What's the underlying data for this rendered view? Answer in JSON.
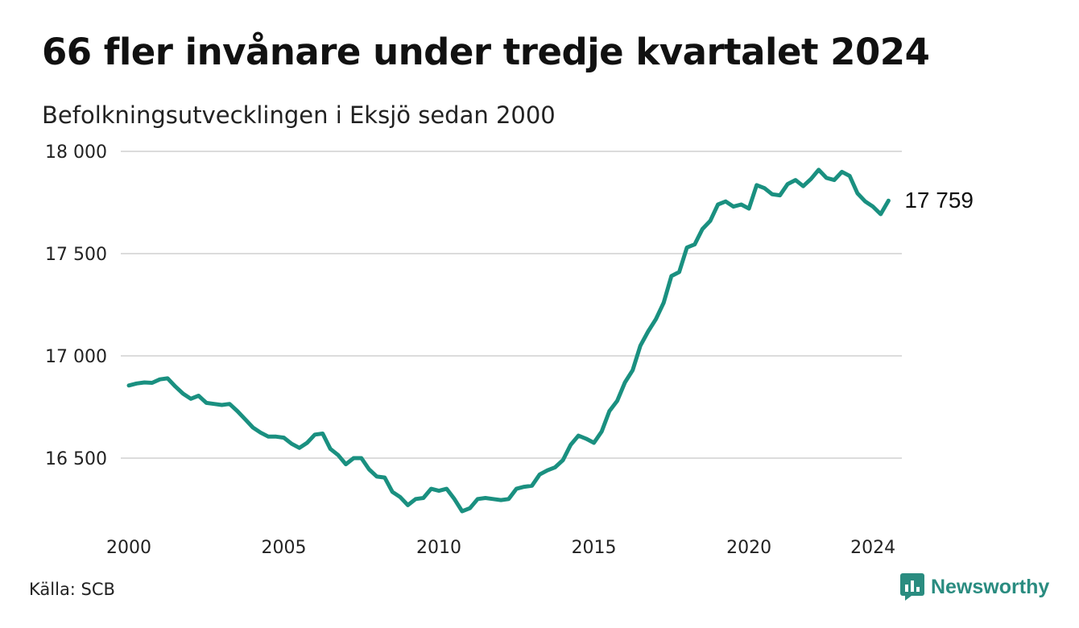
{
  "title": "66 fler invånare under tredje kvartalet 2024",
  "subtitle": "Befolkningsutvecklingen i Eksjö sedan 2000",
  "source": "Källa: SCB",
  "brand": "Newsworthy",
  "colors": {
    "line": "#1a9080",
    "grid": "#dcdcdc",
    "brand": "#2a8c80"
  },
  "chart_data": {
    "type": "line",
    "title": "66 fler invånare under tredje kvartalet 2024",
    "subtitle": "Befolkningsutvecklingen i Eksjö sedan 2000",
    "xlabel": "",
    "ylabel": "",
    "xlim": [
      2000,
      2024.75
    ],
    "ylim": [
      16200,
      18000
    ],
    "yticks": [
      16500,
      17000,
      17500,
      18000
    ],
    "ytick_labels": [
      "16 500",
      "17 000",
      "17 500",
      "18 000"
    ],
    "xticks": [
      2000,
      2005,
      2010,
      2015,
      2020,
      2024
    ],
    "xtick_labels": [
      "2000",
      "2005",
      "2010",
      "2015",
      "2020",
      "2024"
    ],
    "grid": true,
    "end_label": "17 759",
    "series": [
      {
        "x_start": 2000,
        "x_step": 0.25,
        "values": [
          16855,
          16865,
          16870,
          16868,
          16885,
          16890,
          16850,
          16815,
          16790,
          16805,
          16770,
          16765,
          16760,
          16765,
          16730,
          16690,
          16650,
          16625,
          16605,
          16605,
          16600,
          16570,
          16550,
          16575,
          16615,
          16620,
          16545,
          16515,
          16470,
          16500,
          16500,
          16445,
          16410,
          16405,
          16335,
          16310,
          16270,
          16300,
          16305,
          16350,
          16340,
          16350,
          16300,
          16240,
          16255,
          16300,
          16305,
          16300,
          16295,
          16300,
          16350,
          16360,
          16365,
          16420,
          16440,
          16455,
          16490,
          16565,
          16610,
          16595,
          16575,
          16630,
          16730,
          16780,
          16870,
          16930,
          17050,
          17120,
          17180,
          17260,
          17390,
          17410,
          17530,
          17545,
          17620,
          17660,
          17740,
          17755,
          17730,
          17740,
          17720,
          17835,
          17820,
          17790,
          17785,
          17840,
          17860,
          17830,
          17865,
          17910,
          17870,
          17860,
          17900,
          17880,
          17795,
          17755,
          17730,
          17693,
          17759
        ]
      }
    ]
  }
}
